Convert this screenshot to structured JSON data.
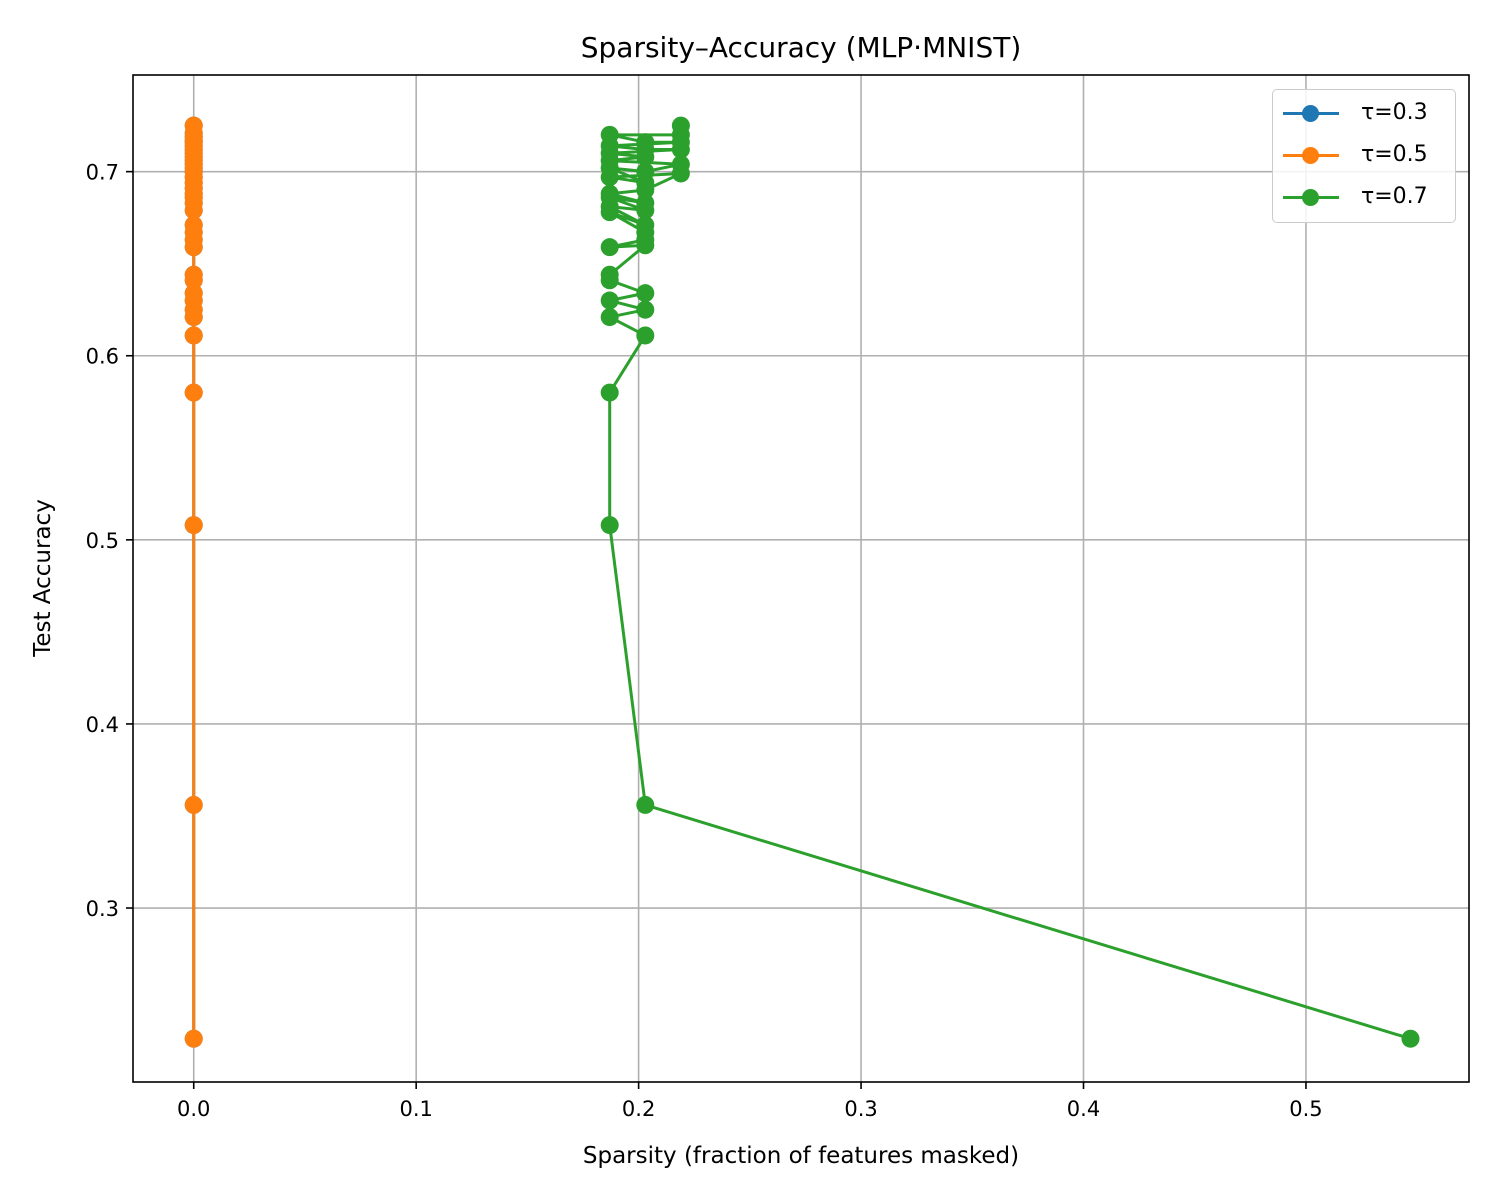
{
  "chart_data": {
    "type": "line",
    "title": "Sparsity–Accuracy (MLP·MNIST)",
    "xlabel": "Sparsity (fraction of features masked)",
    "ylabel": "Test Accuracy",
    "xlim": [
      -0.0273,
      0.5733
    ],
    "ylim": [
      0.2055,
      0.7525
    ],
    "xticks": [
      0.0,
      0.1,
      0.2,
      0.3,
      0.4,
      0.5
    ],
    "xtick_labels": [
      "0.0",
      "0.1",
      "0.2",
      "0.3",
      "0.4",
      "0.5"
    ],
    "yticks": [
      0.3,
      0.4,
      0.5,
      0.6,
      0.7
    ],
    "ytick_labels": [
      "0.3",
      "0.4",
      "0.5",
      "0.6",
      "0.7"
    ],
    "grid": true,
    "legend_position": "top-right",
    "series": [
      {
        "name": "τ=0.3",
        "color": "#1f77b4",
        "x": [
          0,
          0,
          0,
          0,
          0,
          0,
          0,
          0,
          0,
          0,
          0,
          0,
          0,
          0,
          0,
          0,
          0,
          0,
          0,
          0,
          0,
          0,
          0,
          0,
          0,
          0,
          0,
          0,
          0,
          0,
          0,
          0,
          0,
          0,
          0
        ],
        "y": [
          0.229,
          0.356,
          0.508,
          0.58,
          0.611,
          0.621,
          0.625,
          0.63,
          0.634,
          0.641,
          0.644,
          0.659,
          0.663,
          0.667,
          0.671,
          0.679,
          0.683,
          0.686,
          0.688,
          0.691,
          0.694,
          0.697,
          0.7,
          0.702,
          0.704,
          0.706,
          0.708,
          0.71,
          0.712,
          0.714,
          0.716,
          0.717,
          0.719,
          0.721,
          0.725
        ]
      },
      {
        "name": "τ=0.5",
        "color": "#ff7f0e",
        "x": [
          0,
          0,
          0,
          0,
          0,
          0,
          0,
          0,
          0,
          0,
          0,
          0,
          0,
          0,
          0,
          0,
          0,
          0,
          0,
          0,
          0,
          0,
          0,
          0,
          0,
          0,
          0,
          0,
          0,
          0,
          0,
          0,
          0,
          0,
          0
        ],
        "y": [
          0.229,
          0.356,
          0.508,
          0.58,
          0.611,
          0.621,
          0.625,
          0.63,
          0.634,
          0.641,
          0.644,
          0.659,
          0.663,
          0.667,
          0.671,
          0.679,
          0.683,
          0.686,
          0.688,
          0.691,
          0.694,
          0.697,
          0.7,
          0.702,
          0.704,
          0.706,
          0.708,
          0.71,
          0.712,
          0.714,
          0.716,
          0.717,
          0.719,
          0.721,
          0.725
        ]
      },
      {
        "name": "τ=0.7",
        "color": "#2ca02c",
        "x": [
          0.547,
          0.203,
          0.187,
          0.187,
          0.203,
          0.187,
          0.203,
          0.187,
          0.203,
          0.187,
          0.187,
          0.203,
          0.187,
          0.203,
          0.203,
          0.187,
          0.203,
          0.187,
          0.203,
          0.187,
          0.203,
          0.187,
          0.203,
          0.219,
          0.187,
          0.203,
          0.187,
          0.203,
          0.219,
          0.187,
          0.203,
          0.187,
          0.219,
          0.203,
          0.187,
          0.219,
          0.203,
          0.187,
          0.219,
          0.219
        ],
        "y": [
          0.229,
          0.356,
          0.508,
          0.58,
          0.611,
          0.621,
          0.625,
          0.63,
          0.634,
          0.641,
          0.644,
          0.66,
          0.659,
          0.663,
          0.667,
          0.678,
          0.671,
          0.681,
          0.679,
          0.686,
          0.683,
          0.688,
          0.69,
          0.699,
          0.697,
          0.694,
          0.702,
          0.7,
          0.704,
          0.706,
          0.708,
          0.71,
          0.712,
          0.712,
          0.714,
          0.716,
          0.716,
          0.72,
          0.72,
          0.725
        ]
      }
    ]
  }
}
